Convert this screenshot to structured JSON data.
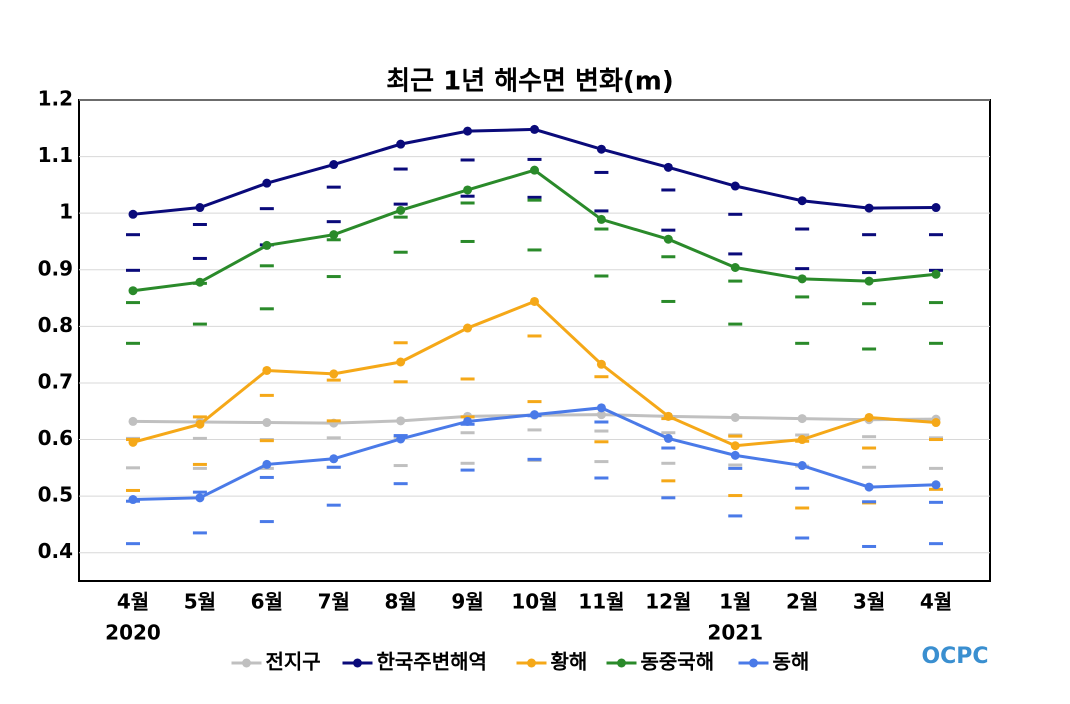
{
  "chart_data": {
    "type": "line",
    "title": "최근 1년 해수면 변화(m)",
    "categories": [
      "4월",
      "5월",
      "6월",
      "7월",
      "8월",
      "9월",
      "10월",
      "11월",
      "12월",
      "1월",
      "2월",
      "3월",
      "4월"
    ],
    "x_sublabels": [
      "2020",
      null,
      null,
      null,
      null,
      null,
      null,
      null,
      null,
      "2021",
      null,
      null,
      null
    ],
    "ylim": [
      0.35,
      1.2
    ],
    "yticks": [
      0.4,
      0.5,
      0.6,
      0.7,
      0.8,
      0.9,
      1,
      1.1,
      1.2
    ],
    "grid": true,
    "legend": "bottom",
    "logo": "OCPC",
    "series": [
      {
        "name": "전지구",
        "color": "#c0c0c0",
        "values": [
          0.632,
          0.631,
          0.63,
          0.629,
          0.633,
          0.641,
          0.643,
          0.644,
          0.641,
          0.639,
          0.637,
          0.635,
          0.636
        ],
        "high": [
          0.602,
          0.602,
          0.6,
          0.603,
          0.604,
          0.612,
          0.617,
          0.615,
          0.612,
          0.608,
          0.608,
          0.605,
          0.603
        ],
        "low": [
          0.55,
          0.549,
          0.549,
          0.551,
          0.554,
          0.558,
          0.563,
          0.561,
          0.558,
          0.555,
          0.553,
          0.551,
          0.549
        ]
      },
      {
        "name": "한국주변해역",
        "color": "#0a0a7a",
        "values": [
          0.998,
          1.01,
          1.053,
          1.086,
          1.122,
          1.145,
          1.148,
          1.113,
          1.081,
          1.048,
          1.022,
          1.009,
          1.01
        ],
        "high": [
          0.962,
          0.98,
          1.008,
          1.046,
          1.078,
          1.094,
          1.095,
          1.072,
          1.041,
          0.998,
          0.972,
          0.962,
          0.962
        ],
        "low": [
          0.899,
          0.92,
          0.944,
          0.985,
          1.016,
          1.03,
          1.028,
          1.004,
          0.97,
          0.928,
          0.902,
          0.895,
          0.899
        ]
      },
      {
        "name": "황해",
        "color": "#f5a818",
        "values": [
          0.595,
          0.627,
          0.722,
          0.716,
          0.737,
          0.797,
          0.844,
          0.733,
          0.641,
          0.589,
          0.6,
          0.639,
          0.63
        ],
        "high": [
          0.6,
          0.64,
          0.678,
          0.705,
          0.771,
          0.707,
          0.783,
          0.711,
          0.637,
          0.606,
          0.597,
          0.585,
          0.6
        ],
        "low": [
          0.51,
          0.556,
          0.598,
          0.633,
          0.702,
          0.64,
          0.667,
          0.596,
          0.527,
          0.501,
          0.479,
          0.488,
          0.512
        ]
      },
      {
        "name": "동중국해",
        "color": "#2a8a2a",
        "values": [
          0.863,
          0.878,
          0.943,
          0.962,
          1.005,
          1.041,
          1.076,
          0.989,
          0.954,
          0.904,
          0.884,
          0.88,
          0.892
        ],
        "high": [
          0.842,
          0.876,
          0.907,
          0.953,
          0.993,
          1.018,
          1.023,
          0.972,
          0.923,
          0.88,
          0.852,
          0.84,
          0.842
        ],
        "low": [
          0.77,
          0.804,
          0.831,
          0.888,
          0.931,
          0.95,
          0.935,
          0.889,
          0.844,
          0.804,
          0.77,
          0.76,
          0.77
        ]
      },
      {
        "name": "동해",
        "color": "#4a7ae8",
        "values": [
          0.494,
          0.497,
          0.556,
          0.566,
          0.601,
          0.632,
          0.644,
          0.656,
          0.602,
          0.572,
          0.554,
          0.516,
          0.52
        ],
        "high": [
          0.491,
          0.507,
          0.533,
          0.551,
          0.607,
          0.627,
          0.642,
          0.631,
          0.585,
          0.549,
          0.514,
          0.49,
          0.489
        ],
        "low": [
          0.416,
          0.435,
          0.455,
          0.484,
          0.522,
          0.546,
          0.565,
          0.532,
          0.497,
          0.465,
          0.426,
          0.411,
          0.416
        ]
      }
    ]
  }
}
